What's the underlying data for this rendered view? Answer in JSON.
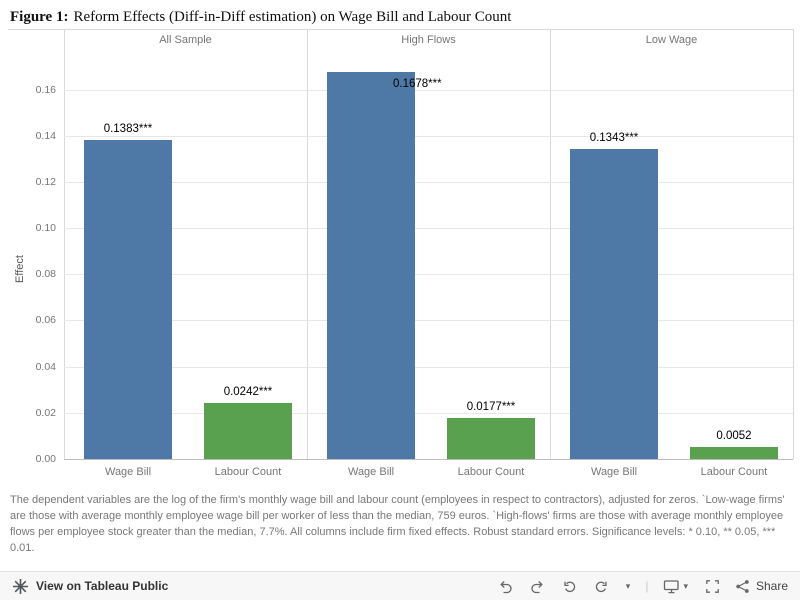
{
  "title": {
    "label": "Figure 1:",
    "text": "Reform Effects (Diff-in-Diff estimation) on Wage Bill and Labour Count"
  },
  "chart_data": {
    "type": "bar",
    "title": "Reform Effects (Diff-in-Diff estimation) on Wage Bill and Labour Count",
    "ylabel": "Effect",
    "xlabel": "",
    "ylim": [
      0,
      0.175
    ],
    "yticks": [
      "0.16",
      "0.14",
      "0.12",
      "0.10",
      "0.08",
      "0.06",
      "0.04",
      "0.02",
      "0.00"
    ],
    "grid": true,
    "legend": "none",
    "panels": [
      "All Sample",
      "High Flows",
      "Low Wage"
    ],
    "categories": [
      "Wage Bill",
      "Labour Count"
    ],
    "series": [
      {
        "panel": "All Sample",
        "category": "Wage Bill",
        "value": 0.1383,
        "label": "0.1383***",
        "color": "#4e79a7"
      },
      {
        "panel": "All Sample",
        "category": "Labour Count",
        "value": 0.0242,
        "label": "0.0242***",
        "color": "#59a14f"
      },
      {
        "panel": "High Flows",
        "category": "Wage Bill",
        "value": 0.1678,
        "label": "0.1678***",
        "color": "#4e79a7"
      },
      {
        "panel": "High Flows",
        "category": "Labour Count",
        "value": 0.0177,
        "label": "0.0177***",
        "color": "#59a14f"
      },
      {
        "panel": "Low Wage",
        "category": "Wage Bill",
        "value": 0.1343,
        "label": "0.1343***",
        "color": "#4e79a7"
      },
      {
        "panel": "Low Wage",
        "category": "Labour Count",
        "value": 0.0052,
        "label": "0.0052",
        "color": "#59a14f"
      }
    ]
  },
  "caption": "The dependent variables are the log of the firm's monthly wage bill and labour count (employees in respect to contractors), adjusted for zeros. `Low-wage firms' are those with average monthly employee wage bill per worker of less than the median, 759 euros. `High-flows' firms are those with average monthly employee flows per employee stock greater than the median, 7.7%. All columns include firm fixed effects. Robust standard errors. Significance levels: * 0.10, ** 0.05, *** 0.01.",
  "toolbar": {
    "view_label": "View on Tableau Public",
    "share_label": "Share",
    "glyphs": {
      "caret": "▾",
      "divider": "|"
    },
    "icons": [
      "tableau-logo",
      "undo",
      "redo",
      "replay",
      "refresh",
      "caret-down",
      "divider",
      "download-device",
      "fullscreen",
      "share"
    ]
  },
  "colors": {
    "bar_blue": "#4e79a7",
    "bar_green": "#59a14f",
    "axis_gray": "#767676"
  }
}
